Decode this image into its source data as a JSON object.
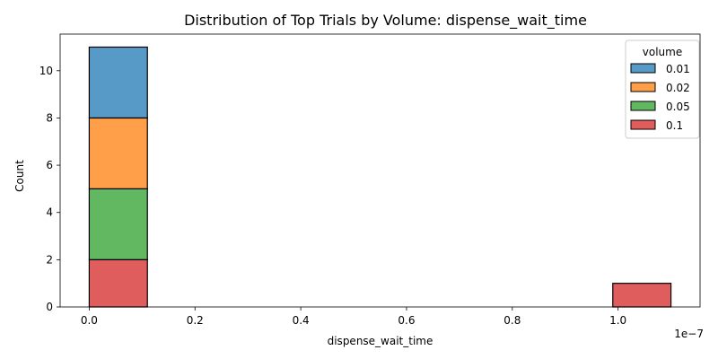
{
  "chart_data": {
    "type": "bar",
    "title": "Distribution of Top Trials by Volume: dispense_wait_time",
    "xlabel": "dispense_wait_time",
    "ylabel": "Count",
    "x_offset_label": "1e−7",
    "x_scale": 1e-07,
    "xlim": [
      -0.055,
      1.155
    ],
    "ylim": [
      0,
      11.55
    ],
    "x_ticks": [
      0.0,
      0.2,
      0.4,
      0.6,
      0.8,
      1.0
    ],
    "x_tick_labels": [
      "0.0",
      "0.2",
      "0.4",
      "0.6",
      "0.8",
      "1.0"
    ],
    "y_ticks": [
      0,
      2,
      4,
      6,
      8,
      10
    ],
    "y_tick_labels": [
      "0",
      "2",
      "4",
      "6",
      "8",
      "10"
    ],
    "stacked": true,
    "bin_edges": [
      0.0,
      0.11,
      0.22,
      0.33,
      0.44,
      0.55,
      0.66,
      0.77,
      0.88,
      0.99,
      1.1
    ],
    "legend_title": "volume",
    "legend_position": "top-right",
    "grid": false,
    "series": [
      {
        "name": "0.1",
        "color": "#d62728",
        "values": [
          2,
          0,
          0,
          0,
          0,
          0,
          0,
          0,
          0,
          1
        ]
      },
      {
        "name": "0.05",
        "color": "#2ca02c",
        "values": [
          3,
          0,
          0,
          0,
          0,
          0,
          0,
          0,
          0,
          0
        ]
      },
      {
        "name": "0.02",
        "color": "#ff7f0e",
        "values": [
          3,
          0,
          0,
          0,
          0,
          0,
          0,
          0,
          0,
          0
        ]
      },
      {
        "name": "0.01",
        "color": "#1f77b4",
        "values": [
          3,
          0,
          0,
          0,
          0,
          0,
          0,
          0,
          0,
          0
        ]
      }
    ],
    "legend_order": [
      "0.01",
      "0.02",
      "0.05",
      "0.1"
    ]
  }
}
